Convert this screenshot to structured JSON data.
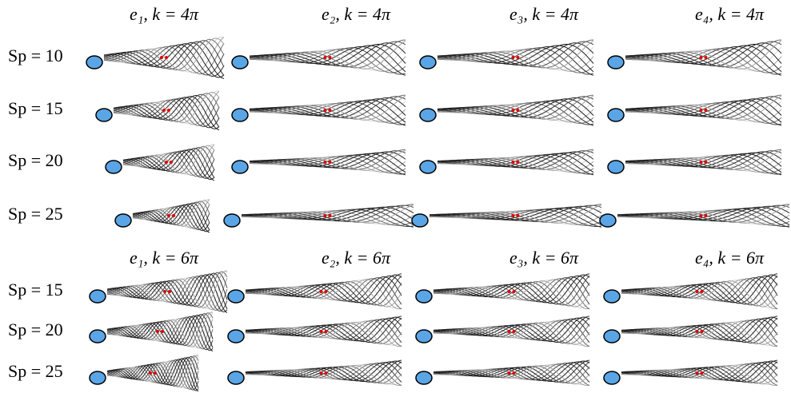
{
  "blocks": [
    {
      "headers": [
        "e₁,  k = 4π",
        "e₂,  k = 4π",
        "e₃,  k = 4π",
        "e₄,  k = 4π"
      ],
      "rows": [
        "Sp = 10",
        "Sp = 15",
        "Sp = 20",
        "Sp = 25"
      ]
    },
    {
      "headers": [
        "e₁,  k = 6π",
        "e₂,  k = 6π",
        "e₃,  k = 6π",
        "e₄,  k = 6π"
      ],
      "rows": [
        "Sp = 15",
        "Sp = 20",
        "Sp = 25"
      ]
    }
  ]
}
